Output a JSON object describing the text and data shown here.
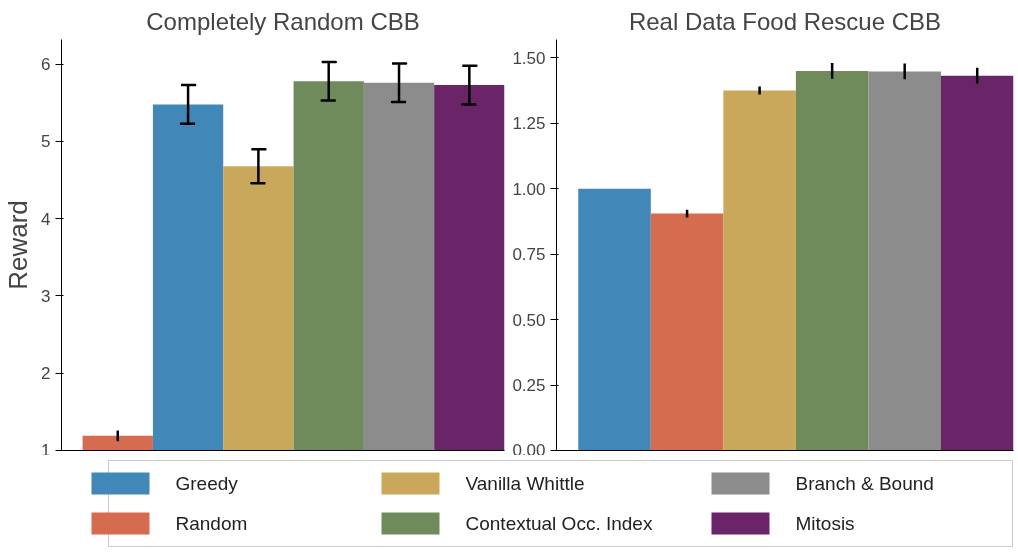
{
  "chart_data": [
    {
      "type": "bar",
      "title": "Completely Random CBB",
      "ylabel": "Reward",
      "categories": [
        null
      ],
      "ylim": [
        1,
        6.32
      ],
      "yticks": [
        1,
        2,
        3,
        4,
        5,
        6
      ],
      "grid": false,
      "series": [
        {
          "color": "#d56b4f",
          "values": [
            1.19
          ],
          "errors": [
            0.07
          ]
        },
        {
          "color": "#4187b8",
          "values": [
            5.48
          ],
          "errors": [
            0.25
          ]
        },
        {
          "color": "#c9a85c",
          "values": [
            4.68
          ],
          "errors": [
            0.22
          ]
        },
        {
          "color": "#6f8b5c",
          "values": [
            5.78
          ],
          "errors": [
            0.25
          ]
        },
        {
          "color": "#8c8c8c",
          "values": [
            5.76
          ],
          "errors": [
            0.25
          ]
        },
        {
          "color": "#6a2468",
          "values": [
            5.73
          ],
          "errors": [
            0.25
          ]
        }
      ]
    },
    {
      "type": "bar",
      "title": "Real Data Food Rescue CBB",
      "categories": [
        null
      ],
      "ylim": [
        0,
        1.57
      ],
      "yticks": [
        {
          "value": 0,
          "label": "0.00"
        },
        {
          "value": 0.25,
          "label": "0.25"
        },
        {
          "value": 0.5,
          "label": "0.50"
        },
        {
          "value": 0.75,
          "label": "0.75"
        },
        {
          "value": 1,
          "label": "1.00"
        },
        {
          "value": 1.25,
          "label": "1.25"
        },
        {
          "value": 1.5,
          "label": "1.50"
        }
      ],
      "grid": false,
      "legend": "bottom",
      "series": [
        {
          "name": "Greedy",
          "color": "#4187b8",
          "values": [
            1.0
          ],
          "errors": [
            null
          ]
        },
        {
          "name": "Random",
          "color": "#d56b4f",
          "values": [
            0.905
          ],
          "errors": [
            0.015
          ]
        },
        {
          "name": "Vanilla Whittle",
          "color": "#c9a85c",
          "values": [
            1.375
          ],
          "errors": [
            0.015
          ]
        },
        {
          "name": "Contextual Occ. Index",
          "color": "#6f8b5c",
          "values": [
            1.45
          ],
          "errors": [
            0.03
          ]
        },
        {
          "name": "Branch & Bound",
          "color": "#8c8c8c",
          "values": [
            1.448
          ],
          "errors": [
            0.03
          ]
        },
        {
          "name": "Mitosis",
          "color": "#6a2468",
          "values": [
            1.432
          ],
          "errors": [
            0.03
          ]
        }
      ]
    }
  ]
}
